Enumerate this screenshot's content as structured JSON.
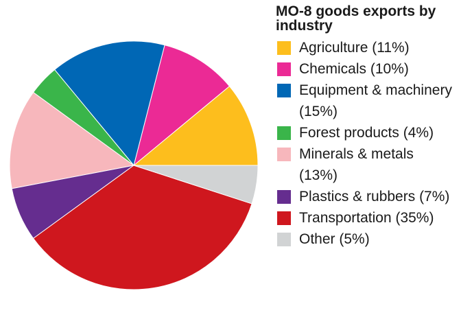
{
  "chart_data": {
    "type": "pie",
    "title": "MO-8 goods exports by industry",
    "legend_position": "right",
    "start_angle_deg": 0,
    "direction": "counterclockwise",
    "slices": [
      {
        "label": "Agriculture (11%)",
        "value": 11,
        "color": "#FDBE1D"
      },
      {
        "label": "Chemicals (10%)",
        "value": 10,
        "color": "#EB2A95"
      },
      {
        "label": "Equipment & machinery (15%)",
        "value": 15,
        "color": "#0067B5"
      },
      {
        "label": "Forest products (4%)",
        "value": 4,
        "color": "#3AB54A"
      },
      {
        "label": "Minerals & metals (13%)",
        "value": 13,
        "color": "#F7B7BC"
      },
      {
        "label": "Plastics & rubbers (7%)",
        "value": 7,
        "color": "#652D8F"
      },
      {
        "label": "Transportation (35%)",
        "value": 35,
        "color": "#CF171E"
      },
      {
        "label": "Other (5%)",
        "value": 5,
        "color": "#D1D3D4"
      }
    ]
  }
}
